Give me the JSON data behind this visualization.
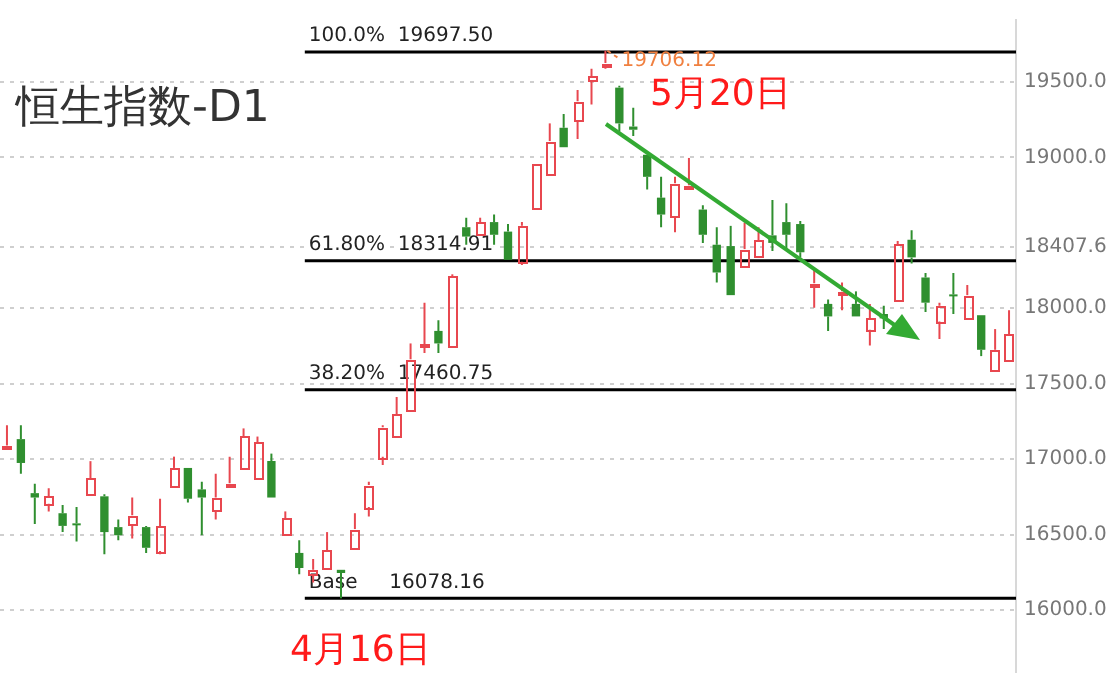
{
  "chart_data": {
    "type": "candlestick",
    "title": "恒生指数-D1",
    "categories": [
      null,
      null,
      null,
      null,
      null,
      null,
      null,
      null,
      null,
      null,
      null,
      null,
      null,
      null,
      null,
      null,
      null,
      null,
      null,
      null,
      null,
      null,
      null,
      null,
      null,
      null,
      null,
      null,
      null,
      null,
      null,
      null,
      null,
      null,
      null,
      null,
      null,
      null,
      null,
      null,
      null,
      null,
      null,
      null,
      null,
      null,
      null,
      null,
      null,
      null,
      null,
      null,
      null,
      null,
      null,
      null,
      null,
      null,
      null,
      null,
      null,
      null,
      null,
      null,
      null,
      null,
      null,
      null,
      null,
      null,
      null,
      null,
      null
    ],
    "ohlc": [
      [
        17080,
        17225,
        17070,
        17090
      ],
      [
        17133,
        17225,
        16904,
        16975
      ],
      [
        16775,
        16838,
        16571,
        16746
      ],
      [
        16704,
        16808,
        16654,
        16754
      ],
      [
        16642,
        16696,
        16517,
        16558
      ],
      [
        16575,
        16683,
        16454,
        16565
      ],
      [
        16767,
        16987,
        16767,
        16871
      ],
      [
        16754,
        16767,
        16371,
        16517
      ],
      [
        16550,
        16600,
        16463,
        16496
      ],
      [
        16571,
        16746,
        16475,
        16629
      ],
      [
        16550,
        16558,
        16379,
        16413
      ],
      [
        16392,
        16738,
        16371,
        16558
      ],
      [
        16817,
        17017,
        16817,
        16942
      ],
      [
        16942,
        16942,
        16713,
        16738
      ],
      [
        16800,
        16850,
        16496,
        16746
      ],
      [
        16663,
        16904,
        16600,
        16746
      ],
      [
        16835,
        17017,
        16830,
        16840
      ],
      [
        16942,
        17204,
        16942,
        17150
      ],
      [
        16863,
        17150,
        16863,
        17108
      ],
      [
        16988,
        17037,
        16746,
        16746
      ],
      [
        16496,
        16654,
        16496,
        16608
      ],
      [
        16379,
        16463,
        16238,
        16279
      ],
      [
        16238,
        16338,
        16183,
        16267
      ],
      [
        16267,
        16517,
        16267,
        16392
      ],
      [
        16267,
        16267,
        16078,
        16246
      ],
      [
        16421,
        16642,
        16421,
        16537
      ],
      [
        16683,
        16850,
        16621,
        16829
      ],
      [
        17017,
        17225,
        16962,
        17212
      ],
      [
        17154,
        17412,
        17154,
        17296
      ],
      [
        17337,
        17767,
        17337,
        17662
      ],
      [
        17750,
        18037,
        17704,
        17758
      ],
      [
        17850,
        17921,
        17704,
        17767
      ],
      [
        17754,
        18225,
        17754,
        18212
      ],
      [
        18537,
        18600,
        18421,
        18475
      ],
      [
        18487,
        18600,
        18487,
        18571
      ],
      [
        18571,
        18621,
        18421,
        18487
      ],
      [
        18508,
        18558,
        18321,
        18321
      ],
      [
        18308,
        18571,
        18287,
        18546
      ],
      [
        18662,
        18954,
        18662,
        18954
      ],
      [
        18892,
        19225,
        18892,
        19108
      ],
      [
        19196,
        19287,
        19067,
        19067
      ],
      [
        19246,
        19446,
        19121,
        19371
      ],
      [
        19508,
        19587,
        19350,
        19537
      ],
      [
        19618,
        19706.12,
        19587,
        19625
      ],
      [
        19462,
        19475,
        19171,
        19225
      ],
      [
        19204,
        19329,
        19142,
        19183
      ],
      [
        19017,
        19017,
        18787,
        18871
      ],
      [
        18733,
        18871,
        18537,
        18621
      ],
      [
        18612,
        18871,
        18504,
        18829
      ],
      [
        18800,
        18996,
        18800,
        18815
      ],
      [
        18654,
        18683,
        18433,
        18487
      ],
      [
        18421,
        18537,
        18171,
        18237
      ],
      [
        18412,
        18546,
        18087,
        18087
      ],
      [
        18287,
        18567,
        18287,
        18392
      ],
      [
        18337,
        18537,
        18337,
        18446
      ],
      [
        18483,
        18717,
        18379,
        18433
      ],
      [
        18571,
        18696,
        18379,
        18487
      ],
      [
        18558,
        18579,
        18337,
        18371
      ],
      [
        18158,
        18267,
        18004,
        18166
      ],
      [
        18029,
        18058,
        17850,
        17946
      ],
      [
        18104,
        18171,
        17987,
        18112
      ],
      [
        18029,
        18112,
        17946,
        17946
      ],
      [
        17858,
        18029,
        17754,
        17933
      ],
      [
        17962,
        18017,
        17862,
        17933
      ],
      [
        18058,
        18446,
        18058,
        18425
      ],
      [
        18454,
        18517,
        18296,
        18337
      ],
      [
        18204,
        18233,
        17975,
        18037
      ],
      [
        17912,
        18037,
        17796,
        18017
      ],
      [
        18092,
        18233,
        17962,
        18083
      ],
      [
        17941,
        18154,
        17941,
        18087
      ],
      [
        17954,
        17954,
        17683,
        17725
      ],
      [
        17587,
        17862,
        17587,
        17725
      ],
      [
        17662,
        17987,
        17662,
        17829
      ]
    ],
    "colors": [
      "#e8474f",
      "#2f8f2f",
      "#2f8f2f",
      "#e8474f",
      "#2f8f2f",
      "#2f8f2f",
      "#e8474f",
      "#2f8f2f",
      "#2f8f2f",
      "#e8474f",
      "#2f8f2f",
      "#e8474f",
      "#e8474f",
      "#2f8f2f",
      "#2f8f2f",
      "#e8474f",
      "#e8474f",
      "#e8474f",
      "#e8474f",
      "#2f8f2f",
      "#e8474f",
      "#2f8f2f",
      "#e8474f",
      "#e8474f",
      "#2f8f2f",
      "#e8474f",
      "#e8474f",
      "#e8474f",
      "#e8474f",
      "#e8474f",
      "#e8474f",
      "#2f8f2f",
      "#e8474f",
      "#2f8f2f",
      "#e8474f",
      "#2f8f2f",
      "#2f8f2f",
      "#e8474f",
      "#e8474f",
      "#e8474f",
      "#2f8f2f",
      "#e8474f",
      "#e8474f",
      "#e8474f",
      "#2f8f2f",
      "#2f8f2f",
      "#2f8f2f",
      "#2f8f2f",
      "#e8474f",
      "#e8474f",
      "#2f8f2f",
      "#2f8f2f",
      "#2f8f2f",
      "#e8474f",
      "#e8474f",
      "#2f8f2f",
      "#2f8f2f",
      "#2f8f2f",
      "#e8474f",
      "#2f8f2f",
      "#e8474f",
      "#2f8f2f",
      "#e8474f",
      "#2f8f2f",
      "#e8474f",
      "#2f8f2f",
      "#2f8f2f",
      "#e8474f",
      "#2f8f2f",
      "#e8474f",
      "#2f8f2f",
      "#e8474f",
      "#e8474f"
    ],
    "ylim": [
      15590,
      19910
    ],
    "yticks": [
      {
        "value": 16000,
        "label": "16000.0"
      },
      {
        "value": 16500,
        "label": "16500.0"
      },
      {
        "value": 17000,
        "label": "17000.0"
      },
      {
        "value": 17500,
        "label": "17500.0"
      },
      {
        "value": 18000,
        "label": "18000.0"
      },
      {
        "value": 18407.6,
        "label": "18407.6"
      },
      {
        "value": 19000,
        "label": "19000.0"
      },
      {
        "value": 19500,
        "label": "19500.0"
      }
    ],
    "grid": "y",
    "ref_lines": [
      {
        "axis": "y",
        "value": 19697.5,
        "label": "100.0%  19697.50",
        "color": "#000000"
      },
      {
        "axis": "y",
        "value": 18314.91,
        "label": "61.80%  18314.91",
        "color": "#000000"
      },
      {
        "axis": "y",
        "value": 17460.75,
        "label": "38.20%  17460.75",
        "color": "#000000"
      },
      {
        "axis": "y",
        "value": 16078.16,
        "label": "Base     16078.16",
        "color": "#000000"
      }
    ],
    "annotations": [
      {
        "text": "19706.12",
        "y": 19706.12
      },
      "5月20日",
      "4月16日"
    ]
  }
}
